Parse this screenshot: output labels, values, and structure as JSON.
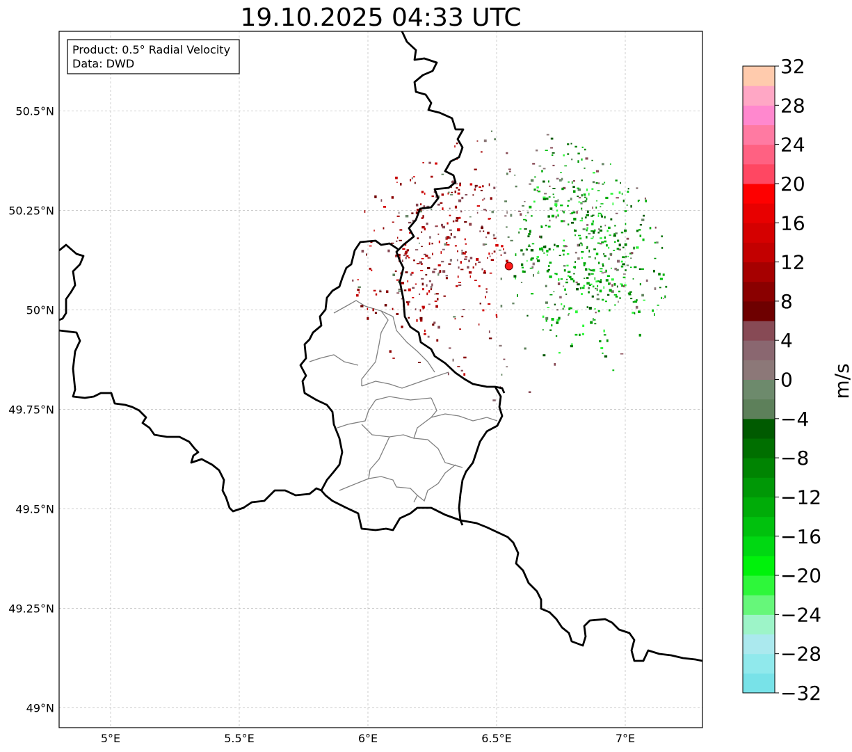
{
  "title": "19.10.2025 04:33 UTC",
  "info_box": {
    "product": "Product: 0.5° Radial Velocity",
    "source": "Data: DWD"
  },
  "map": {
    "lon_range": [
      4.8,
      7.3
    ],
    "lat_range": [
      48.95,
      50.7
    ],
    "lon_ticks": [
      {
        "value": 5.0,
        "label": "5°E"
      },
      {
        "value": 5.5,
        "label": "5.5°E"
      },
      {
        "value": 6.0,
        "label": "6°E"
      },
      {
        "value": 6.5,
        "label": "6.5°E"
      },
      {
        "value": 7.0,
        "label": "7°E"
      }
    ],
    "lat_ticks": [
      {
        "value": 49.0,
        "label": "49°N"
      },
      {
        "value": 49.25,
        "label": "49.25°N"
      },
      {
        "value": 49.5,
        "label": "49.5°N"
      },
      {
        "value": 49.75,
        "label": "49.75°N"
      },
      {
        "value": 50.0,
        "label": "50°N"
      },
      {
        "value": 50.25,
        "label": "50.25°N"
      },
      {
        "value": 50.5,
        "label": "50.5°N"
      }
    ],
    "gridlines": true,
    "radar_site": {
      "lon": 6.548,
      "lat": 50.11,
      "color": "#ff1a1a"
    }
  },
  "colorbar": {
    "unit": "m/s",
    "vmin": -32,
    "vmax": 32,
    "tick_values": [
      -32,
      -28,
      -24,
      -20,
      -16,
      -12,
      -8,
      -4,
      0,
      4,
      8,
      12,
      16,
      20,
      24,
      28,
      32
    ],
    "tick_labels": [
      "−32",
      "−28",
      "−24",
      "−20",
      "−16",
      "−12",
      "−8",
      "−4",
      "0",
      "4",
      "8",
      "12",
      "16",
      "20",
      "24",
      "28",
      "32"
    ],
    "colors": [
      "#78e2e8",
      "#90e9ec",
      "#abe9ee",
      "#9df4c8",
      "#66f77a",
      "#2ef73a",
      "#00f20b",
      "#00d812",
      "#00c10d",
      "#00ac08",
      "#009806",
      "#008402",
      "#006f00",
      "#005a00",
      "#5d805a",
      "#6d8a6c",
      "#8c7878",
      "#8a6770",
      "#874a55",
      "#6e0000",
      "#8a0000",
      "#a60000",
      "#c30000",
      "#d50000",
      "#e80000",
      "#fe0000",
      "#ff4762",
      "#ff6182",
      "#ff7aa2",
      "#ff88ce",
      "#ffa7c5",
      "#ffcbad"
    ]
  }
}
